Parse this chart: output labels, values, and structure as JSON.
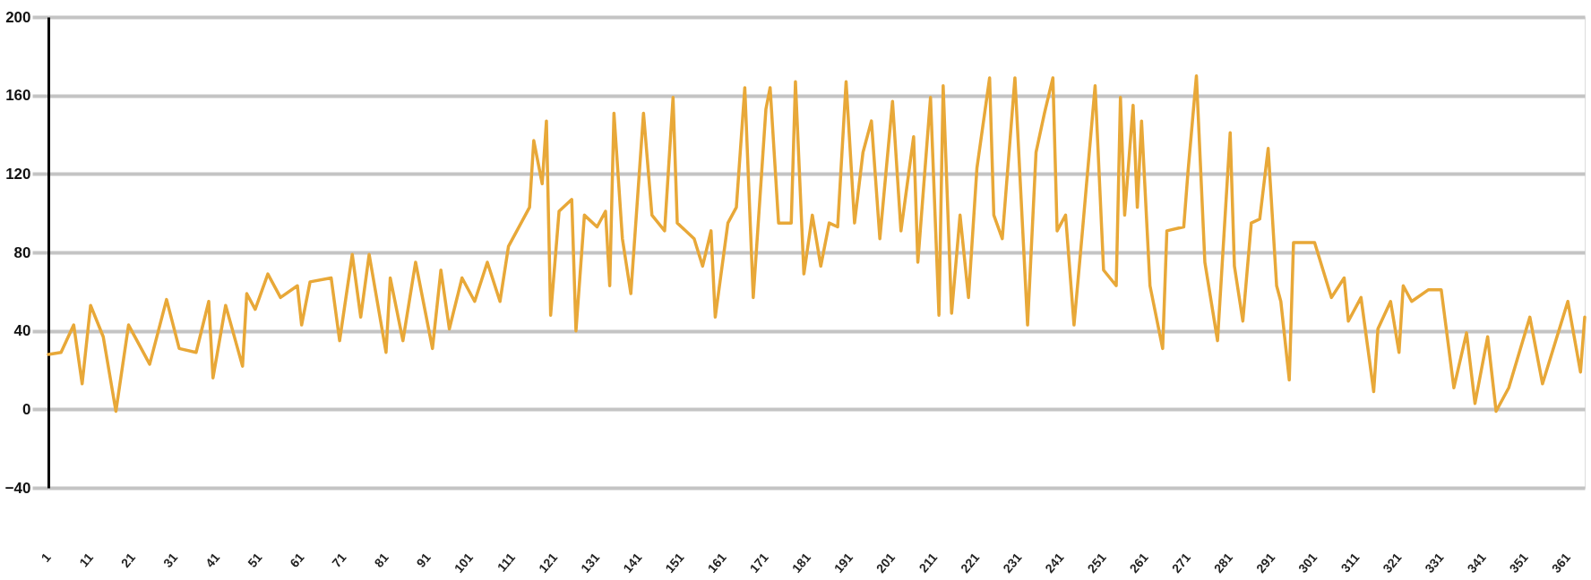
{
  "chart_data": {
    "type": "line",
    "x": [
      1,
      4,
      7,
      9,
      11,
      14,
      17,
      20,
      25,
      29,
      32,
      36,
      39,
      40,
      43,
      47,
      48,
      50,
      53,
      56,
      60,
      61,
      63,
      68,
      70,
      73,
      75,
      77,
      81,
      82,
      85,
      88,
      92,
      94,
      96,
      99,
      102,
      105,
      108,
      110,
      115,
      116,
      118,
      119,
      120,
      122,
      125,
      126,
      128,
      131,
      133,
      134,
      135,
      137,
      139,
      142,
      144,
      147,
      149,
      150,
      154,
      156,
      158,
      159,
      162,
      164,
      166,
      168,
      171,
      172,
      174,
      177,
      178,
      180,
      182,
      184,
      186,
      188,
      190,
      192,
      194,
      196,
      198,
      201,
      203,
      206,
      207,
      210,
      212,
      213,
      215,
      217,
      219,
      221,
      224,
      225,
      227,
      230,
      233,
      235,
      237,
      239,
      240,
      242,
      244,
      246,
      249,
      251,
      254,
      255,
      256,
      258,
      259,
      260,
      262,
      265,
      266,
      270,
      271,
      273,
      275,
      278,
      281,
      282,
      284,
      286,
      288,
      290,
      292,
      293,
      295,
      296,
      301,
      305,
      308,
      309,
      312,
      315,
      316,
      319,
      321,
      322,
      324,
      328,
      331,
      334,
      337,
      339,
      342,
      344,
      347,
      352,
      355,
      361,
      364,
      365
    ],
    "series": [
      {
        "color": "#e8a838",
        "values": [
          28,
          29,
          43,
          13,
          53,
          37,
          -1,
          43,
          23,
          56,
          31,
          29,
          55,
          16,
          53,
          22,
          59,
          51,
          69,
          57,
          63,
          43,
          65,
          67,
          35,
          79,
          47,
          79,
          29,
          67,
          35,
          75,
          31,
          71,
          41,
          67,
          55,
          75,
          55,
          83,
          103,
          137,
          115,
          147,
          48,
          101,
          107,
          40,
          99,
          93,
          101,
          63,
          151,
          87,
          59,
          151,
          99,
          91,
          159,
          95,
          87,
          73,
          91,
          47,
          95,
          103,
          164,
          57,
          153,
          164,
          95,
          95,
          167,
          69,
          99,
          73,
          95,
          93,
          167,
          95,
          131,
          147,
          87,
          157,
          91,
          139,
          75,
          159,
          48,
          165,
          49,
          99,
          57,
          123,
          169,
          99,
          87,
          169,
          43,
          131,
          151,
          169,
          91,
          99,
          43,
          91,
          165,
          71,
          63,
          159,
          99,
          155,
          103,
          147,
          63,
          31,
          91,
          93,
          121,
          170,
          75,
          35,
          141,
          73,
          45,
          95,
          97,
          133,
          63,
          55,
          15,
          85,
          85,
          57,
          67,
          45,
          57,
          9,
          41,
          55,
          29,
          63,
          55,
          61,
          61,
          11,
          39,
          3,
          37,
          -1,
          11,
          47,
          13,
          55,
          19,
          47
        ]
      }
    ],
    "xlim": [
      1,
      365
    ],
    "xticks": [
      1,
      11,
      21,
      31,
      41,
      51,
      61,
      71,
      81,
      91,
      101,
      111,
      121,
      131,
      141,
      151,
      161,
      171,
      181,
      191,
      201,
      211,
      221,
      231,
      241,
      251,
      261,
      271,
      281,
      291,
      301,
      311,
      321,
      331,
      341,
      351,
      361
    ],
    "ylim": [
      -40,
      200
    ],
    "yticks": [
      -40,
      0,
      40,
      80,
      120,
      160,
      200
    ],
    "grid": "y",
    "legend": false,
    "line_style": "solid"
  }
}
